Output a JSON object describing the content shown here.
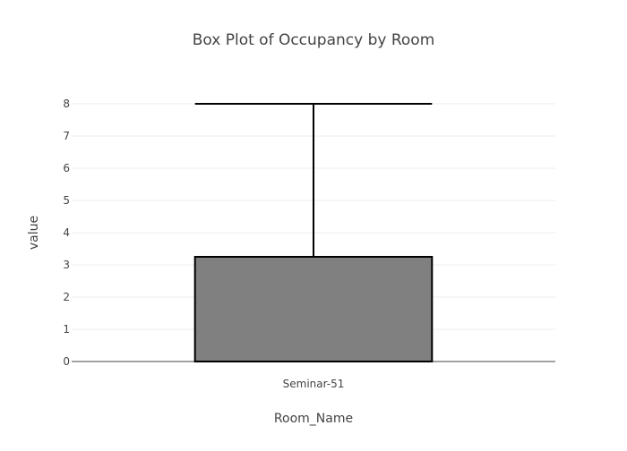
{
  "chart_data": {
    "type": "box",
    "title": "Box Plot of Occupancy by Room",
    "xlabel": "Room_Name",
    "ylabel": "value",
    "ylim": [
      0,
      8
    ],
    "yticks": [
      0,
      1,
      2,
      3,
      4,
      5,
      6,
      7,
      8
    ],
    "grid": true,
    "legend": "none",
    "categories": [
      "Seminar-51"
    ],
    "boxes": [
      {
        "category": "Seminar-51",
        "min": 0,
        "q1": 0,
        "median": 0,
        "q3": 3.25,
        "max": 8
      }
    ],
    "colors": {
      "box_fill": "#808080",
      "box_stroke": "#000000",
      "grid": "#eeeeee",
      "axis": "#444444",
      "text": "#444444",
      "title": "#444444"
    }
  }
}
